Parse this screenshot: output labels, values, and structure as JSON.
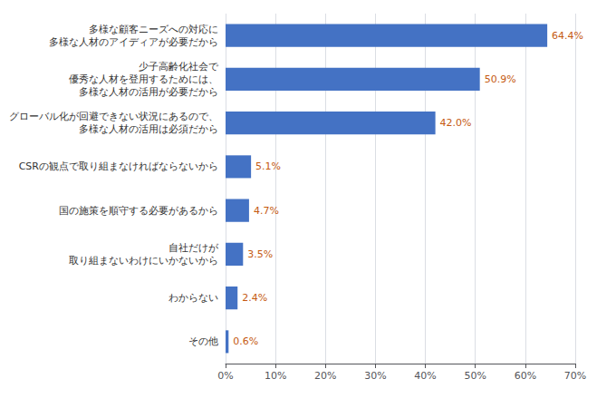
{
  "chart_data": {
    "type": "bar",
    "orientation": "horizontal",
    "categories": [
      "多様な顧客ニーズへの対応に\n多様な人材のアイディアが必要だから",
      "少子高齢化社会で\n優秀な人材を登用するためには、\n多様な人材の活用が必要だから",
      "グローバル化が回避できない状況にあるので、\n多様な人材の活用は必須だから",
      "CSRの観点で取り組まなければならないから",
      "国の施策を順守する必要があるから",
      "自社だけが\n取り組まないわけにいかないから",
      "わからない",
      "その他"
    ],
    "values": [
      64.4,
      50.9,
      42.0,
      5.1,
      4.7,
      3.5,
      2.4,
      0.6
    ],
    "value_labels": [
      "64.4%",
      "50.9%",
      "42.0%",
      "5.1%",
      "4.7%",
      "3.5%",
      "2.4%",
      "0.6%"
    ],
    "data_labels": true,
    "color": "#4472c4",
    "xlim": [
      0,
      70
    ],
    "xticks": [
      {
        "value": 0,
        "label": "0%"
      },
      {
        "value": 10,
        "label": "10%"
      },
      {
        "value": 20,
        "label": "20%"
      },
      {
        "value": 30,
        "label": "30%"
      },
      {
        "value": 40,
        "label": "40%"
      },
      {
        "value": 50,
        "label": "50%"
      },
      {
        "value": 60,
        "label": "60%"
      },
      {
        "value": 70,
        "label": "70%"
      }
    ],
    "grid": true
  }
}
